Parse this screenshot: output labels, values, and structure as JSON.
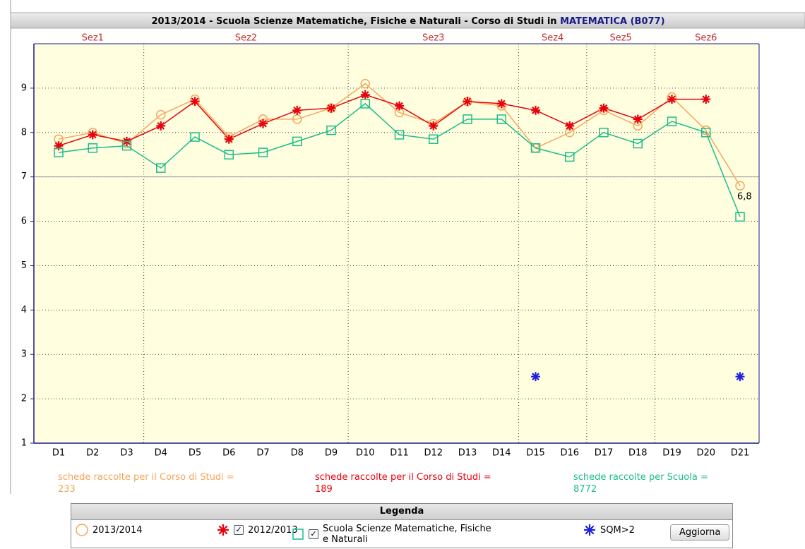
{
  "chart_data": {
    "type": "line",
    "title": "2013/2014 - Scuola Scienze Matematiche, Fisiche e Naturali - Corso di Studi in ",
    "title_highlight": "MATEMATICA (B077)",
    "categories": [
      "D1",
      "D2",
      "D3",
      "D4",
      "D5",
      "D6",
      "D7",
      "D8",
      "D9",
      "D10",
      "D11",
      "D12",
      "D13",
      "D14",
      "D15",
      "D16",
      "D17",
      "D18",
      "D19",
      "D20",
      "D21"
    ],
    "sections": [
      {
        "label": "Sez1",
        "span": 3
      },
      {
        "label": "Sez2",
        "span": 6
      },
      {
        "label": "Sez3",
        "span": 5
      },
      {
        "label": "Sez4",
        "span": 2
      },
      {
        "label": "Sez5",
        "span": 2
      },
      {
        "label": "Sez6",
        "span": 3
      }
    ],
    "ylim": [
      1,
      10
    ],
    "yticks": [
      1,
      2,
      3,
      4,
      5,
      6,
      7,
      8,
      9
    ],
    "grid": true,
    "reference_line": 7,
    "series": [
      {
        "name": "2013/2014",
        "color": "#f5a55a",
        "marker": "circle",
        "values": [
          7.85,
          8.0,
          7.75,
          8.4,
          8.75,
          7.9,
          8.3,
          8.3,
          8.55,
          9.1,
          8.45,
          8.2,
          8.7,
          8.6,
          7.65,
          8.0,
          8.5,
          8.15,
          8.8,
          8.05,
          6.8
        ],
        "value_labels": [
          null,
          null,
          null,
          null,
          null,
          null,
          null,
          null,
          null,
          null,
          null,
          null,
          null,
          null,
          null,
          null,
          null,
          null,
          null,
          null,
          "6,8"
        ]
      },
      {
        "name": "2012/2013",
        "color": "#e8000d",
        "marker": "asterisk",
        "checkbox": true,
        "values": [
          7.7,
          7.95,
          7.8,
          8.15,
          8.7,
          7.85,
          8.2,
          8.5,
          8.55,
          8.85,
          8.6,
          8.15,
          8.7,
          8.65,
          8.5,
          8.15,
          8.55,
          8.3,
          8.75,
          8.75,
          null
        ]
      },
      {
        "name": "Scuola Scienze Matematiche, Fisiche e Naturali",
        "color": "#1abc8c",
        "marker": "square",
        "checkbox": true,
        "values": [
          7.55,
          7.65,
          7.7,
          7.2,
          7.9,
          7.5,
          7.55,
          7.8,
          8.05,
          8.65,
          7.95,
          7.85,
          8.3,
          8.3,
          7.65,
          7.45,
          8.0,
          7.75,
          8.25,
          8.0,
          6.1
        ]
      },
      {
        "name": "SQM>2",
        "color": "#2020e0",
        "marker": "asterisk",
        "line": false,
        "values": [
          null,
          null,
          null,
          null,
          null,
          null,
          null,
          null,
          null,
          null,
          null,
          null,
          null,
          null,
          2.5,
          null,
          null,
          null,
          null,
          null,
          2.5
        ]
      }
    ],
    "counts": [
      {
        "label": "schede raccolte per il Corso di Studi =",
        "value": 233,
        "color": "#f5a55a"
      },
      {
        "label": "schede raccolte per il Corso di Studi =",
        "value": 189,
        "color": "#e8000d"
      },
      {
        "label": "schede raccolte per Scuola =",
        "value": 8772,
        "color": "#1abc8c"
      }
    ],
    "legend_title": "Legenda",
    "button": "Aggiorna"
  }
}
